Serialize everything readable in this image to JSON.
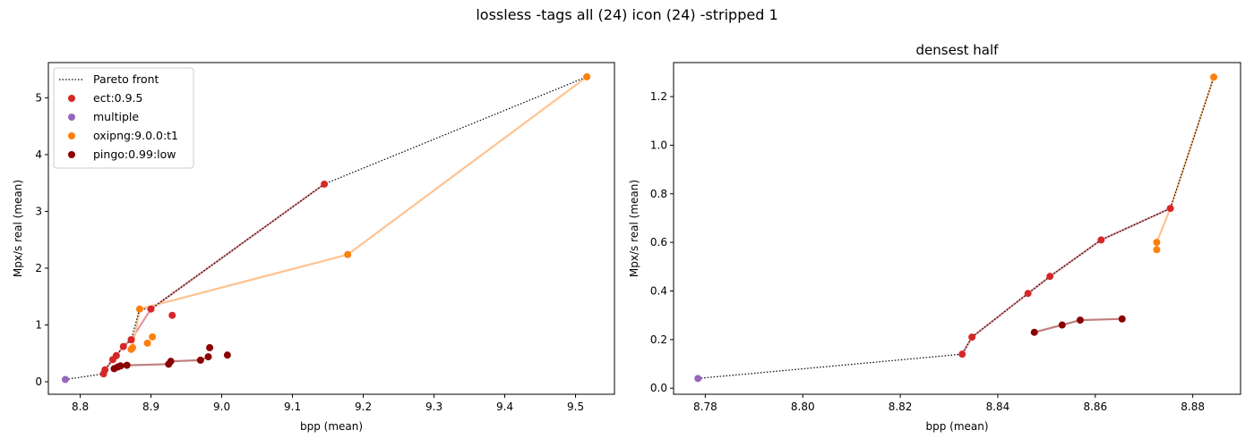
{
  "suptitle": "lossless -tags all (24) icon (24) -stripped 1",
  "colors": {
    "pareto": "#000000",
    "ect": "#d62728",
    "ect_line": "#e6959a",
    "multiple": "#9467bd",
    "oxipng": "#ff7f0e",
    "oxipng_line": "#ffc390",
    "pingo": "#8b0000",
    "pingo_line": "#c08080"
  },
  "chart_data": [
    {
      "type": "scatter",
      "title": "",
      "xlabel": "bpp (mean)",
      "ylabel": "Mpx/s real (mean)",
      "xlim": [
        8.755,
        9.555
      ],
      "ylim": [
        -0.22,
        5.62
      ],
      "xticks": [
        8.8,
        8.9,
        9.0,
        9.1,
        9.2,
        9.3,
        9.4,
        9.5
      ],
      "xtick_labels": [
        "8.8",
        "8.9",
        "9.0",
        "9.1",
        "9.2",
        "9.3",
        "9.4",
        "9.5"
      ],
      "yticks": [
        0,
        1,
        2,
        3,
        4,
        5
      ],
      "ytick_labels": [
        "0",
        "1",
        "2",
        "3",
        "4",
        "5"
      ],
      "legend_position": "upper-left",
      "legend": [
        {
          "label": "Pareto front",
          "kind": "line",
          "color": "#000000"
        },
        {
          "label": "ect:0.9.5",
          "kind": "dot",
          "color": "#d62728"
        },
        {
          "label": "multiple",
          "kind": "dot",
          "color": "#9467bd"
        },
        {
          "label": "oxipng:9.0.0:t1",
          "kind": "dot",
          "color": "#ff7f0e"
        },
        {
          "label": "pingo:0.99:low",
          "kind": "dot",
          "color": "#8b0000"
        }
      ],
      "pareto": [
        [
          8.779,
          0.04
        ],
        [
          8.833,
          0.14
        ],
        [
          8.835,
          0.21
        ],
        [
          8.846,
          0.39
        ],
        [
          8.851,
          0.46
        ],
        [
          8.861,
          0.62
        ],
        [
          8.872,
          0.74
        ],
        [
          8.884,
          1.28
        ],
        [
          8.9,
          1.28
        ],
        [
          9.145,
          3.48
        ],
        [
          9.516,
          5.37
        ]
      ],
      "series": [
        {
          "name": "ect:0.9.5",
          "color": "#d62728",
          "line_color": "#e6959a",
          "line": [
            [
              8.833,
              0.14
            ],
            [
              8.835,
              0.21
            ],
            [
              8.846,
              0.39
            ],
            [
              8.851,
              0.46
            ],
            [
              8.861,
              0.62
            ],
            [
              8.872,
              0.74
            ],
            [
              8.9,
              1.28
            ],
            [
              9.145,
              3.48
            ]
          ],
          "points": [
            [
              8.833,
              0.14
            ],
            [
              8.835,
              0.21
            ],
            [
              8.846,
              0.39
            ],
            [
              8.851,
              0.46
            ],
            [
              8.861,
              0.62
            ],
            [
              8.872,
              0.74
            ],
            [
              8.9,
              1.28
            ],
            [
              9.145,
              3.48
            ],
            [
              8.93,
              1.17
            ]
          ]
        },
        {
          "name": "multiple",
          "color": "#9467bd",
          "line_color": "#9467bd",
          "line": [],
          "points": [
            [
              8.779,
              0.04
            ]
          ]
        },
        {
          "name": "oxipng:9.0.0:t1",
          "color": "#ff7f0e",
          "line_color": "#ffc390",
          "line": [
            [
              8.872,
              0.57
            ],
            [
              8.874,
              0.6
            ],
            [
              8.884,
              1.28
            ],
            [
              9.178,
              2.24
            ],
            [
              9.516,
              5.37
            ]
          ],
          "points": [
            [
              8.872,
              0.57
            ],
            [
              8.874,
              0.6
            ],
            [
              8.884,
              1.28
            ],
            [
              9.178,
              2.24
            ],
            [
              9.516,
              5.37
            ],
            [
              8.895,
              0.68
            ],
            [
              8.902,
              0.79
            ]
          ]
        },
        {
          "name": "pingo:0.99:low",
          "color": "#8b0000",
          "line_color": "#c08080",
          "line": [
            [
              8.848,
              0.23
            ],
            [
              8.853,
              0.26
            ],
            [
              8.857,
              0.28
            ],
            [
              8.866,
              0.29
            ],
            [
              8.925,
              0.31
            ],
            [
              8.928,
              0.36
            ],
            [
              8.97,
              0.38
            ],
            [
              8.981,
              0.44
            ]
          ],
          "points": [
            [
              8.848,
              0.23
            ],
            [
              8.853,
              0.26
            ],
            [
              8.857,
              0.28
            ],
            [
              8.866,
              0.29
            ],
            [
              8.925,
              0.31
            ],
            [
              8.928,
              0.36
            ],
            [
              8.97,
              0.38
            ],
            [
              8.981,
              0.44
            ],
            [
              8.983,
              0.6
            ],
            [
              9.008,
              0.47
            ]
          ]
        }
      ]
    },
    {
      "type": "scatter",
      "title": "densest half",
      "xlabel": "bpp (mean)",
      "ylabel": "Mpx/s real (mean)",
      "xlim": [
        8.7735,
        8.8898
      ],
      "ylim": [
        -0.025,
        1.34
      ],
      "xticks": [
        8.78,
        8.8,
        8.82,
        8.84,
        8.86,
        8.88
      ],
      "xtick_labels": [
        "8.78",
        "8.80",
        "8.82",
        "8.84",
        "8.86",
        "8.88"
      ],
      "yticks": [
        0.0,
        0.2,
        0.4,
        0.6,
        0.8,
        1.0,
        1.2
      ],
      "ytick_labels": [
        "0.0",
        "0.2",
        "0.4",
        "0.6",
        "0.8",
        "1.0",
        "1.2"
      ],
      "pareto": [
        [
          8.7785,
          0.04
        ],
        [
          8.8327,
          0.14
        ],
        [
          8.8347,
          0.21
        ],
        [
          8.8462,
          0.39
        ],
        [
          8.8507,
          0.46
        ],
        [
          8.8612,
          0.61
        ],
        [
          8.8754,
          0.74
        ],
        [
          8.8843,
          1.28
        ]
      ],
      "series": [
        {
          "name": "ect:0.9.5",
          "color": "#d62728",
          "line_color": "#e6959a",
          "line": [
            [
              8.8327,
              0.14
            ],
            [
              8.8347,
              0.21
            ],
            [
              8.8462,
              0.39
            ],
            [
              8.8507,
              0.46
            ],
            [
              8.8612,
              0.61
            ],
            [
              8.8754,
              0.74
            ]
          ],
          "points": [
            [
              8.8327,
              0.14
            ],
            [
              8.8347,
              0.21
            ],
            [
              8.8462,
              0.39
            ],
            [
              8.8507,
              0.46
            ],
            [
              8.8612,
              0.61
            ],
            [
              8.8754,
              0.74
            ]
          ]
        },
        {
          "name": "multiple",
          "color": "#9467bd",
          "line_color": "#9467bd",
          "line": [],
          "points": [
            [
              8.7785,
              0.04
            ]
          ]
        },
        {
          "name": "oxipng:9.0.0:t1",
          "color": "#ff7f0e",
          "line_color": "#ffc390",
          "line": [
            [
              8.8726,
              0.57
            ],
            [
              8.8726,
              0.6
            ],
            [
              8.8754,
              0.74
            ],
            [
              8.8843,
              1.28
            ]
          ],
          "points": [
            [
              8.8726,
              0.57
            ],
            [
              8.8726,
              0.6
            ],
            [
              8.8843,
              1.28
            ]
          ]
        },
        {
          "name": "pingo:0.99:low",
          "color": "#8b0000",
          "line_color": "#c08080",
          "line": [
            [
              8.8475,
              0.23
            ],
            [
              8.8532,
              0.26
            ],
            [
              8.8569,
              0.28
            ],
            [
              8.8655,
              0.285
            ]
          ],
          "points": [
            [
              8.8475,
              0.23
            ],
            [
              8.8532,
              0.26
            ],
            [
              8.8569,
              0.28
            ],
            [
              8.8655,
              0.285
            ]
          ]
        }
      ]
    }
  ]
}
